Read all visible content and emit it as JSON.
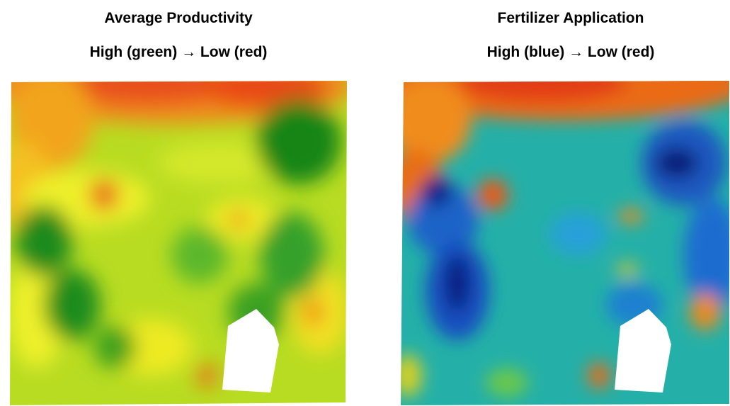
{
  "maps": [
    {
      "title": "Average Productivity",
      "legend": "High (green) → Low (red)",
      "palette": {
        "high": "#0a7f12",
        "mid": "#f2f21e",
        "low": "#e43a10"
      }
    },
    {
      "title": "Fertilizer Application",
      "legend": "High (blue) → Low (red)",
      "palette": {
        "high": "#0a1a7a",
        "mid": "#26b4a6",
        "low": "#e43a10"
      }
    }
  ]
}
